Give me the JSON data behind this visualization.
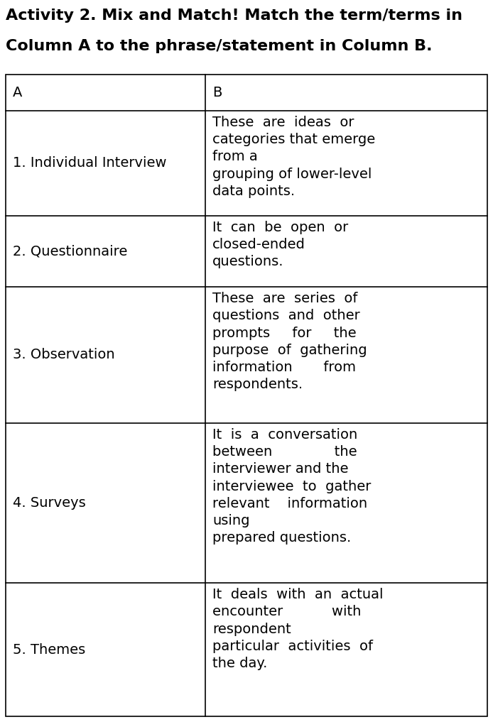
{
  "title_line1": "Activity 2. Mix and Match! Match the term/terms in",
  "title_line2": "Column A to the phrase/statement in Column B.",
  "col_a_header": "A",
  "col_b_header": "B",
  "col_a_items": [
    "1. Individual Interview",
    "2. Questionnaire",
    "3. Observation",
    "4. Surveys",
    "5. Themes"
  ],
  "col_b_items": [
    "These  are  ideas  or\ncategories that emerge\nfrom a\ngrouping of lower-level\ndata points.",
    "It  can  be  open  or\nclosed-ended\nquestions.",
    "These  are  series  of\nquestions  and  other\nprompts     for     the\npurpose  of  gathering\ninformation       from\nrespondents.",
    "It  is  a  conversation\nbetween              the\ninterviewer and the\ninterviewee  to  gather\nrelevant    information\nusing\nprepared questions.",
    "It  deals  with  an  actual\nencounter           with\nrespondent\nparticular  activities  of\nthe day."
  ],
  "background_color": "#ffffff",
  "text_color": "#000000",
  "border_color": "#000000",
  "title_fontsize": 16,
  "cell_fontsize": 14,
  "fig_width": 6.94,
  "fig_height": 10.17,
  "dpi": 100
}
